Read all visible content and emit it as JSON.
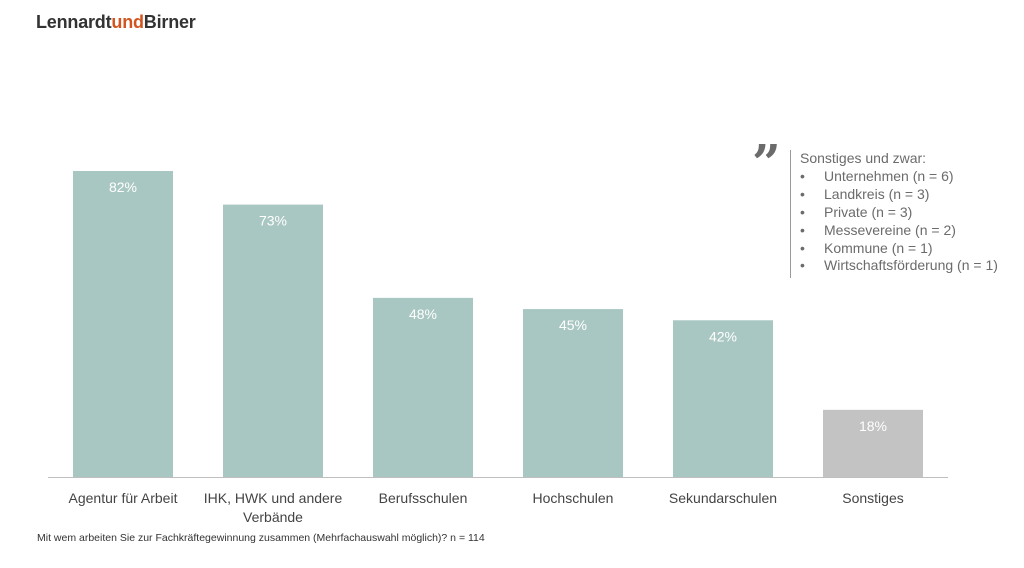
{
  "brand": {
    "part1": "Lennardt",
    "part2": "und",
    "part3": "Birner"
  },
  "footnote": "Mit wem arbeiten Sie zur Fachkräftegewinnung zusammen (Mehrfachauswahl möglich)? n = 114",
  "note": {
    "heading": "Sonstiges und zwar:",
    "items": [
      "Unternehmen (n = 6)",
      "Landkreis (n = 3)",
      "Private (n = 3)",
      "Messevereine (n = 2)",
      "Kommune (n = 1)",
      "Wirtschaftsförderung (n = 1)"
    ]
  },
  "colors": {
    "bar": "#a9c7c2",
    "bar_other": "#c3c3c3",
    "accent": "#d3541e",
    "label": "#ffffff",
    "axis": "#bfbfbf"
  },
  "chart_data": {
    "type": "bar",
    "categories": [
      "Agentur für Arbeit",
      "IHK, HWK und andere Verbände",
      "Berufsschulen",
      "Hochschulen",
      "Sekundarschulen",
      "Sonstiges"
    ],
    "values": [
      82,
      73,
      48,
      45,
      42,
      18
    ],
    "data_labels": [
      "82%",
      "73%",
      "48%",
      "45%",
      "42%",
      "18%"
    ],
    "unit": "%",
    "ylim": [
      0,
      82
    ],
    "grid": false,
    "highlight_category": "Sonstiges"
  }
}
